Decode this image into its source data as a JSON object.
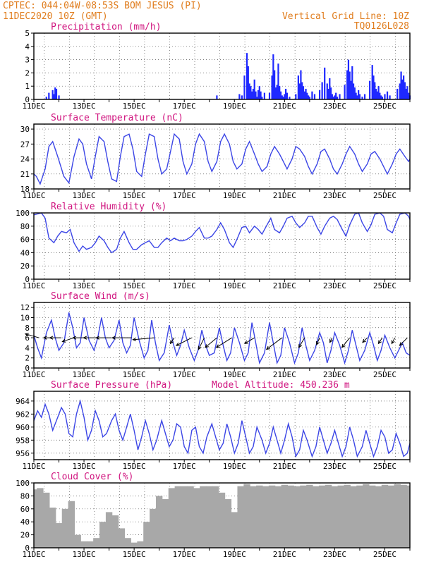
{
  "header": {
    "station": "CPTEC:  044:04W-08:53S  BOM JESUS (PI)",
    "run": "11DEC2020 10Z (GMT)",
    "grid_note": "Vertical Grid Line: 10Z",
    "model": "TQ0126L028"
  },
  "x_tick_labels": [
    "11DEC",
    "13DEC",
    "15DEC",
    "17DEC",
    "19DEC",
    "21DEC",
    "23DEC",
    "25DEC"
  ],
  "colors": {
    "line": "#3c46e6",
    "precip": "#1e28ff",
    "cloud": "#a8a8a8",
    "title": "#d0147f",
    "header": "#e07d1e"
  },
  "chart_data": [
    {
      "type": "bar",
      "title": "Precipitation (mm/h)",
      "ylim": [
        0,
        5
      ],
      "yticks": [
        0,
        1,
        2,
        3,
        4,
        5
      ],
      "time_start_day": 11,
      "time_end_day": 26,
      "grid": "dotted",
      "x_days": [
        11.5,
        11.6,
        11.75,
        11.8,
        11.85,
        11.9,
        12.0,
        18.3,
        19.2,
        19.3,
        19.4,
        19.5,
        19.55,
        19.6,
        19.65,
        19.7,
        19.75,
        19.8,
        19.85,
        19.9,
        19.95,
        20.0,
        20.05,
        20.1,
        20.2,
        20.4,
        20.5,
        20.55,
        20.6,
        20.65,
        20.7,
        20.75,
        20.8,
        20.85,
        20.9,
        20.95,
        21.0,
        21.05,
        21.1,
        21.2,
        21.45,
        21.55,
        21.6,
        21.65,
        21.7,
        21.75,
        21.8,
        21.85,
        21.9,
        21.95,
        22.0,
        22.1,
        22.2,
        22.4,
        22.5,
        22.6,
        22.7,
        22.75,
        22.8,
        22.85,
        22.9,
        22.95,
        23.0,
        23.05,
        23.1,
        23.2,
        23.4,
        23.5,
        23.55,
        23.6,
        23.65,
        23.7,
        23.75,
        23.8,
        23.85,
        23.9,
        23.95,
        24.0,
        24.1,
        24.2,
        24.4,
        24.5,
        24.55,
        24.6,
        24.65,
        24.7,
        24.75,
        24.8,
        24.85,
        24.9,
        25.0,
        25.1,
        25.2,
        25.5,
        25.6,
        25.65,
        25.7,
        25.75,
        25.8,
        25.85,
        25.9,
        25.95,
        26.0
      ],
      "values": [
        0.2,
        0.5,
        0.7,
        0.4,
        0.9,
        0.8,
        0.3,
        0.3,
        0.4,
        0.3,
        1.8,
        3.5,
        2.5,
        1.2,
        1.0,
        0.6,
        0.8,
        1.5,
        0.6,
        0.2,
        0.7,
        1.0,
        0.6,
        0.2,
        0.5,
        0.5,
        1.8,
        3.4,
        2.2,
        0.9,
        1.1,
        2.7,
        1.0,
        0.6,
        0.3,
        0.2,
        0.4,
        0.8,
        0.5,
        0.2,
        0.4,
        1.8,
        1.2,
        2.2,
        1.3,
        1.0,
        0.6,
        0.8,
        0.5,
        0.3,
        0.2,
        0.6,
        0.4,
        0.7,
        1.3,
        2.4,
        1.2,
        0.8,
        1.6,
        0.9,
        0.4,
        0.2,
        0.3,
        0.5,
        0.2,
        0.4,
        1.1,
        2.2,
        3.0,
        2.1,
        1.4,
        2.5,
        1.2,
        0.9,
        0.5,
        0.3,
        0.7,
        0.4,
        0.2,
        0.4,
        1.4,
        2.6,
        1.8,
        1.3,
        0.8,
        0.6,
        1.0,
        0.5,
        0.3,
        0.2,
        0.4,
        0.6,
        0.3,
        0.8,
        1.2,
        2.1,
        1.5,
        1.8,
        1.3,
        0.8,
        1.0,
        0.5,
        0.3
      ]
    },
    {
      "type": "line",
      "title": "Surface Temperature (nC)",
      "ylim": [
        18,
        31
      ],
      "yticks": [
        18,
        21,
        24,
        27,
        30
      ],
      "grid": "dotted",
      "x_days": [
        11.0,
        11.1,
        11.25,
        11.45,
        11.6,
        11.75,
        11.95,
        12.2,
        12.4,
        12.6,
        12.8,
        12.95,
        13.1,
        13.3,
        13.45,
        13.6,
        13.8,
        13.95,
        14.1,
        14.3,
        14.45,
        14.6,
        14.8,
        14.95,
        15.1,
        15.3,
        15.45,
        15.6,
        15.8,
        15.95,
        16.1,
        16.3,
        16.45,
        16.6,
        16.8,
        16.95,
        17.1,
        17.3,
        17.45,
        17.6,
        17.8,
        17.95,
        18.1,
        18.3,
        18.45,
        18.6,
        18.8,
        18.95,
        19.1,
        19.3,
        19.45,
        19.6,
        19.8,
        19.95,
        20.1,
        20.3,
        20.45,
        20.6,
        20.8,
        20.95,
        21.1,
        21.3,
        21.45,
        21.6,
        21.8,
        21.95,
        22.1,
        22.3,
        22.45,
        22.6,
        22.8,
        22.95,
        23.1,
        23.3,
        23.45,
        23.6,
        23.8,
        23.95,
        24.1,
        24.3,
        24.45,
        24.6,
        24.8,
        24.95,
        25.1,
        25.3,
        25.45,
        25.6,
        25.8,
        25.95,
        26.0
      ],
      "values": [
        21.0,
        20.5,
        19.0,
        22.0,
        26.5,
        27.5,
        24.5,
        20.5,
        19.2,
        24.5,
        28.0,
        27.0,
        23.0,
        20.0,
        24.5,
        28.5,
        27.5,
        23.5,
        20.0,
        19.5,
        24.5,
        28.5,
        29.0,
        26.0,
        21.5,
        20.5,
        25.0,
        29.0,
        28.5,
        24.0,
        21.0,
        22.0,
        25.5,
        29.0,
        28.0,
        23.5,
        21.0,
        23.0,
        27.0,
        29.0,
        27.5,
        23.5,
        21.5,
        23.5,
        27.5,
        29.0,
        27.0,
        23.5,
        22.0,
        23.0,
        26.0,
        27.5,
        25.0,
        23.0,
        21.5,
        22.5,
        25.0,
        26.5,
        25.0,
        23.5,
        22.0,
        24.0,
        26.5,
        26.0,
        24.5,
        22.5,
        21.0,
        23.0,
        25.5,
        26.0,
        24.0,
        22.0,
        21.0,
        23.0,
        25.0,
        26.5,
        25.0,
        23.0,
        21.5,
        23.0,
        25.0,
        25.5,
        24.0,
        22.5,
        21.0,
        23.0,
        25.0,
        26.0,
        24.5,
        23.5,
        24.0
      ]
    },
    {
      "type": "line",
      "title": "Relative Humidity (%)",
      "ylim": [
        0,
        100
      ],
      "yticks": [
        0,
        20,
        40,
        60,
        80,
        100
      ],
      "grid": "dotted",
      "x_days": [
        11.0,
        11.3,
        11.45,
        11.6,
        11.8,
        11.95,
        12.1,
        12.3,
        12.45,
        12.6,
        12.8,
        12.95,
        13.1,
        13.3,
        13.45,
        13.6,
        13.8,
        13.95,
        14.1,
        14.3,
        14.45,
        14.6,
        14.8,
        14.95,
        15.1,
        15.3,
        15.45,
        15.6,
        15.8,
        15.95,
        16.1,
        16.3,
        16.45,
        16.6,
        16.8,
        16.95,
        17.1,
        17.3,
        17.45,
        17.6,
        17.8,
        17.95,
        18.1,
        18.3,
        18.45,
        18.6,
        18.8,
        18.95,
        19.1,
        19.3,
        19.45,
        19.6,
        19.8,
        19.95,
        20.1,
        20.3,
        20.45,
        20.6,
        20.8,
        20.95,
        21.1,
        21.3,
        21.45,
        21.6,
        21.8,
        21.95,
        22.1,
        22.3,
        22.45,
        22.6,
        22.8,
        22.95,
        23.1,
        23.3,
        23.45,
        23.6,
        23.8,
        23.95,
        24.1,
        24.3,
        24.45,
        24.6,
        24.8,
        24.95,
        25.1,
        25.3,
        25.45,
        25.6,
        25.8,
        25.95,
        26.0
      ],
      "values": [
        97,
        100,
        92,
        62,
        55,
        65,
        72,
        70,
        75,
        55,
        42,
        50,
        45,
        48,
        55,
        65,
        58,
        48,
        40,
        45,
        62,
        72,
        55,
        45,
        45,
        52,
        55,
        58,
        48,
        48,
        55,
        62,
        58,
        62,
        58,
        58,
        60,
        65,
        72,
        78,
        62,
        62,
        65,
        75,
        85,
        75,
        55,
        48,
        60,
        78,
        80,
        70,
        80,
        75,
        68,
        82,
        92,
        75,
        70,
        80,
        92,
        95,
        85,
        78,
        85,
        95,
        95,
        78,
        68,
        80,
        92,
        95,
        90,
        75,
        65,
        82,
        98,
        100,
        85,
        72,
        82,
        98,
        100,
        95,
        75,
        70,
        85,
        98,
        100,
        95,
        90
      ]
    },
    {
      "type": "line",
      "title": "Surface Wind (m/s)",
      "ylim": [
        0,
        13
      ],
      "yticks": [
        0,
        2,
        4,
        6,
        8,
        10,
        12
      ],
      "grid": "dotted",
      "x_days": [
        11.0,
        11.15,
        11.3,
        11.5,
        11.7,
        11.85,
        12.0,
        12.2,
        12.4,
        12.55,
        12.7,
        12.85,
        13.0,
        13.2,
        13.4,
        13.55,
        13.7,
        13.85,
        14.0,
        14.2,
        14.4,
        14.55,
        14.7,
        14.85,
        15.0,
        15.2,
        15.4,
        15.55,
        15.7,
        15.85,
        16.0,
        16.2,
        16.4,
        16.55,
        16.7,
        16.85,
        17.0,
        17.2,
        17.4,
        17.55,
        17.7,
        17.85,
        18.0,
        18.2,
        18.4,
        18.55,
        18.7,
        18.85,
        19.0,
        19.2,
        19.4,
        19.55,
        19.7,
        19.85,
        20.0,
        20.2,
        20.4,
        20.55,
        20.7,
        20.85,
        21.0,
        21.2,
        21.4,
        21.55,
        21.7,
        21.85,
        22.0,
        22.2,
        22.4,
        22.55,
        22.7,
        22.85,
        23.0,
        23.2,
        23.4,
        23.55,
        23.7,
        23.85,
        24.0,
        24.2,
        24.4,
        24.55,
        24.7,
        24.85,
        25.0,
        25.2,
        25.4,
        25.55,
        25.7,
        25.85,
        26.0
      ],
      "values": [
        6.5,
        4.0,
        2.0,
        7.0,
        9.5,
        6.0,
        3.5,
        5.0,
        11.0,
        8.0,
        4.0,
        5.0,
        10.0,
        5.5,
        3.5,
        6.0,
        10.0,
        6.0,
        4.0,
        5.5,
        9.5,
        5.0,
        3.0,
        4.5,
        10.0,
        5.5,
        2.0,
        3.5,
        9.5,
        5.0,
        1.5,
        3.0,
        8.5,
        5.0,
        2.5,
        4.5,
        7.5,
        4.0,
        1.5,
        3.5,
        7.5,
        4.5,
        2.5,
        3.0,
        8.0,
        4.5,
        1.5,
        3.0,
        8.0,
        5.0,
        1.5,
        3.0,
        9.0,
        5.0,
        1.0,
        3.0,
        9.0,
        5.0,
        1.0,
        2.5,
        8.0,
        5.0,
        1.0,
        3.0,
        8.0,
        4.5,
        1.5,
        3.5,
        7.0,
        5.0,
        1.0,
        3.5,
        7.0,
        4.5,
        1.0,
        3.5,
        7.5,
        4.5,
        1.5,
        3.5,
        7.0,
        4.5,
        1.5,
        3.5,
        6.5,
        4.0,
        2.0,
        3.5,
        5.0,
        3.0,
        2.5
      ],
      "wind_vectors": [
        {
          "day": 11.2,
          "u": -3.5,
          "v": 1.0
        },
        {
          "day": 11.7,
          "u": -2.0,
          "v": 0.0
        },
        {
          "day": 12.1,
          "u": -3.0,
          "v": 0.0
        },
        {
          "day": 12.6,
          "u": -3.0,
          "v": -1.0
        },
        {
          "day": 13.1,
          "u": -3.5,
          "v": 0.0
        },
        {
          "day": 13.6,
          "u": -4.0,
          "v": 0.0
        },
        {
          "day": 14.1,
          "u": -4.0,
          "v": 0.0
        },
        {
          "day": 14.9,
          "u": -5.0,
          "v": 0.0
        },
        {
          "day": 15.8,
          "u": -5.5,
          "v": -0.5
        },
        {
          "day": 16.6,
          "u": -1.0,
          "v": -1.5
        },
        {
          "day": 17.3,
          "u": -4.0,
          "v": -2.0
        },
        {
          "day": 17.8,
          "u": -1.5,
          "v": -3.0
        },
        {
          "day": 18.3,
          "u": -3.0,
          "v": -2.5
        },
        {
          "day": 18.9,
          "u": -4.0,
          "v": -2.5
        },
        {
          "day": 19.8,
          "u": -2.5,
          "v": -1.5
        },
        {
          "day": 20.9,
          "u": -4.0,
          "v": -3.0
        },
        {
          "day": 21.8,
          "u": -1.5,
          "v": -2.5
        },
        {
          "day": 22.4,
          "u": -0.8,
          "v": -1.8
        },
        {
          "day": 22.9,
          "u": -0.6,
          "v": -1.2
        },
        {
          "day": 23.6,
          "u": -2.0,
          "v": -2.5
        },
        {
          "day": 24.3,
          "u": -1.2,
          "v": -1.2
        },
        {
          "day": 24.9,
          "u": -1.0,
          "v": -1.5
        },
        {
          "day": 25.4,
          "u": -0.8,
          "v": -1.5
        },
        {
          "day": 25.9,
          "u": -2.0,
          "v": -2.0
        }
      ]
    },
    {
      "type": "line",
      "title": "Surface Pressure (hPa)",
      "annotation": "Model Altitude: 450.236  m",
      "ylim": [
        955,
        965.5
      ],
      "yticks": [
        956,
        958,
        960,
        962,
        964
      ],
      "grid": "dotted",
      "x_days": [
        11.0,
        11.15,
        11.3,
        11.45,
        11.6,
        11.75,
        11.9,
        12.1,
        12.25,
        12.4,
        12.55,
        12.7,
        12.85,
        13.0,
        13.15,
        13.3,
        13.45,
        13.6,
        13.75,
        13.9,
        14.1,
        14.25,
        14.4,
        14.55,
        14.7,
        14.85,
        15.0,
        15.15,
        15.3,
        15.45,
        15.6,
        15.75,
        15.9,
        16.1,
        16.25,
        16.4,
        16.55,
        16.7,
        16.85,
        17.0,
        17.15,
        17.3,
        17.45,
        17.6,
        17.75,
        17.9,
        18.1,
        18.25,
        18.4,
        18.55,
        18.7,
        18.85,
        19.0,
        19.15,
        19.3,
        19.45,
        19.6,
        19.75,
        19.9,
        20.1,
        20.25,
        20.4,
        20.55,
        20.7,
        20.85,
        21.0,
        21.15,
        21.3,
        21.45,
        21.6,
        21.75,
        21.9,
        22.1,
        22.25,
        22.4,
        22.55,
        22.7,
        22.85,
        23.0,
        23.15,
        23.3,
        23.45,
        23.6,
        23.75,
        23.9,
        24.1,
        24.25,
        24.4,
        24.55,
        24.7,
        24.85,
        25.0,
        25.15,
        25.3,
        25.45,
        25.6,
        25.75,
        25.9,
        26.0
      ],
      "values": [
        961.0,
        962.5,
        961.5,
        963.5,
        962.0,
        959.5,
        961.0,
        963.0,
        962.0,
        959.0,
        958.5,
        962.0,
        964.0,
        961.5,
        958.0,
        959.5,
        962.5,
        961.0,
        958.5,
        959.0,
        961.0,
        962.0,
        959.5,
        958.0,
        960.0,
        962.0,
        959.5,
        956.5,
        958.5,
        961.0,
        959.0,
        956.5,
        958.0,
        961.0,
        959.0,
        957.0,
        958.0,
        960.5,
        960.0,
        957.0,
        956.0,
        959.5,
        960.0,
        957.0,
        956.0,
        958.5,
        960.5,
        958.5,
        956.5,
        957.5,
        960.5,
        958.5,
        956.0,
        957.5,
        961.0,
        958.5,
        956.0,
        957.0,
        960.0,
        958.0,
        956.0,
        957.5,
        960.0,
        958.0,
        956.0,
        958.0,
        960.5,
        958.5,
        955.5,
        956.5,
        959.5,
        958.0,
        955.5,
        957.0,
        960.0,
        958.0,
        956.0,
        957.5,
        959.5,
        957.5,
        955.5,
        957.0,
        960.0,
        958.0,
        955.5,
        957.0,
        959.5,
        957.5,
        955.5,
        957.0,
        959.5,
        958.5,
        956.0,
        956.5,
        959.0,
        957.5,
        955.5,
        956.0,
        957.5
      ]
    },
    {
      "type": "bar",
      "title": "Cloud Cover (%)",
      "ylim": [
        0,
        100
      ],
      "yticks": [
        0,
        20,
        40,
        60,
        80,
        100
      ],
      "grid": "dotted",
      "x_days": [
        11.0,
        11.25,
        11.5,
        11.75,
        12.0,
        12.25,
        12.5,
        12.75,
        13.0,
        13.25,
        13.5,
        13.75,
        14.0,
        14.25,
        14.5,
        14.75,
        15.0,
        15.25,
        15.5,
        15.75,
        16.0,
        16.25,
        16.5,
        16.75,
        17.0,
        17.25,
        17.5,
        17.75,
        18.0,
        18.25,
        18.5,
        18.75,
        19.0,
        19.25,
        19.5,
        19.75,
        20.0,
        20.25,
        20.5,
        20.75,
        21.0,
        21.25,
        21.5,
        21.75,
        22.0,
        22.25,
        22.5,
        22.75,
        23.0,
        23.25,
        23.5,
        23.75,
        24.0,
        24.25,
        24.5,
        24.75,
        25.0,
        25.25,
        25.5,
        25.75,
        26.0
      ],
      "values": [
        90,
        92,
        85,
        62,
        38,
        60,
        72,
        20,
        10,
        10,
        15,
        40,
        55,
        50,
        30,
        15,
        8,
        10,
        40,
        60,
        80,
        75,
        92,
        95,
        95,
        95,
        92,
        95,
        95,
        95,
        85,
        75,
        55,
        95,
        98,
        95,
        96,
        95,
        96,
        95,
        97,
        96,
        95,
        96,
        97,
        95,
        96,
        97,
        95,
        96,
        97,
        95,
        96,
        98,
        96,
        95,
        97,
        96,
        98,
        97,
        96
      ]
    }
  ]
}
